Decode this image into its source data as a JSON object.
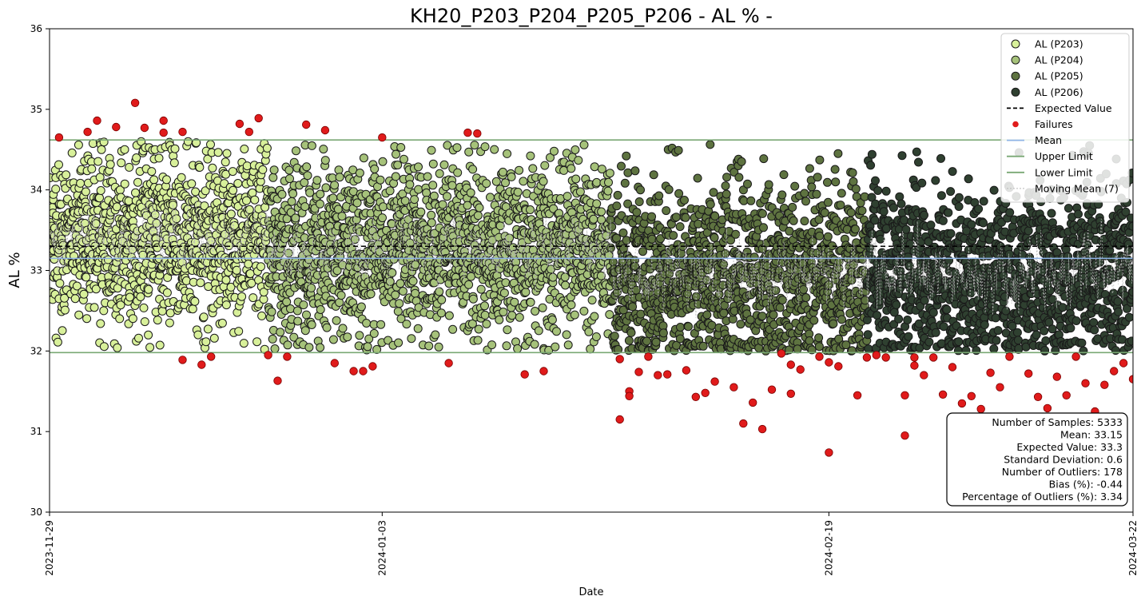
{
  "chart_data": {
    "type": "scatter",
    "title": "KH20_P203_P204_P205_P206 - AL % -",
    "xlabel": "Date",
    "ylabel": "AL %",
    "xlim": [
      "2023-11-29",
      "2024-03-22"
    ],
    "ylim": [
      30,
      36
    ],
    "x_ticks": [
      "2023-11-29",
      "2024-01-03",
      "2024-02-19",
      "2024-03-22"
    ],
    "y_ticks": [
      30,
      31,
      32,
      33,
      34,
      35,
      36
    ],
    "grid": false,
    "legend_position": "top-right",
    "expected_value": 33.3,
    "mean": 33.15,
    "upper_limit": 34.62,
    "lower_limit": 31.98,
    "series": [
      {
        "name": "AL (P203)",
        "color": "#d8f09a",
        "date_range": [
          "2023-11-29",
          "2023-12-22"
        ],
        "center": 33.4,
        "spread": 0.55
      },
      {
        "name": "AL (P204)",
        "color": "#a6c27a",
        "date_range": [
          "2023-12-22",
          "2024-01-27"
        ],
        "center": 33.25,
        "spread": 0.55
      },
      {
        "name": "AL (P205)",
        "color": "#5e7340",
        "date_range": [
          "2024-01-27",
          "2024-02-23"
        ],
        "center": 32.9,
        "spread": 0.6
      },
      {
        "name": "AL (P206)",
        "color": "#2f4030",
        "date_range": [
          "2024-02-23",
          "2024-03-22"
        ],
        "center": 32.95,
        "spread": 0.55
      }
    ],
    "failures": {
      "name": "Failures",
      "color": "#e01b1b",
      "points": [
        [
          "2023-11-30",
          34.65
        ],
        [
          "2023-12-03",
          34.72
        ],
        [
          "2023-12-04",
          34.86
        ],
        [
          "2023-12-06",
          34.78
        ],
        [
          "2023-12-08",
          35.08
        ],
        [
          "2023-12-09",
          34.77
        ],
        [
          "2023-12-11",
          34.71
        ],
        [
          "2023-12-11",
          34.86
        ],
        [
          "2023-12-13",
          34.72
        ],
        [
          "2023-12-13",
          31.89
        ],
        [
          "2023-12-15",
          31.83
        ],
        [
          "2023-12-16",
          31.93
        ],
        [
          "2023-12-19",
          34.82
        ],
        [
          "2023-12-20",
          34.72
        ],
        [
          "2023-12-21",
          34.89
        ],
        [
          "2023-12-22",
          31.95
        ],
        [
          "2023-12-23",
          31.63
        ],
        [
          "2023-12-24",
          31.93
        ],
        [
          "2023-12-26",
          34.81
        ],
        [
          "2023-12-28",
          34.74
        ],
        [
          "2023-12-29",
          31.85
        ],
        [
          "2023-12-31",
          31.75
        ],
        [
          "2024-01-01",
          31.75
        ],
        [
          "2024-01-02",
          31.81
        ],
        [
          "2024-01-03",
          34.65
        ],
        [
          "2024-01-10",
          31.85
        ],
        [
          "2024-01-12",
          34.71
        ],
        [
          "2024-01-13",
          34.7
        ],
        [
          "2024-01-18",
          31.71
        ],
        [
          "2024-01-20",
          31.75
        ],
        [
          "2024-01-28",
          31.15
        ],
        [
          "2024-01-28",
          31.9
        ],
        [
          "2024-01-29",
          31.5
        ],
        [
          "2024-01-29",
          31.44
        ],
        [
          "2024-01-30",
          31.74
        ],
        [
          "2024-01-31",
          31.93
        ],
        [
          "2024-02-01",
          31.7
        ],
        [
          "2024-02-02",
          31.71
        ],
        [
          "2024-02-04",
          31.76
        ],
        [
          "2024-02-05",
          31.43
        ],
        [
          "2024-02-06",
          31.48
        ],
        [
          "2024-02-07",
          31.62
        ],
        [
          "2024-02-09",
          31.55
        ],
        [
          "2024-02-10",
          31.1
        ],
        [
          "2024-02-11",
          31.36
        ],
        [
          "2024-02-12",
          31.03
        ],
        [
          "2024-02-13",
          31.52
        ],
        [
          "2024-02-14",
          31.97
        ],
        [
          "2024-02-15",
          31.47
        ],
        [
          "2024-02-15",
          31.83
        ],
        [
          "2024-02-16",
          31.77
        ],
        [
          "2024-02-18",
          31.93
        ],
        [
          "2024-02-19",
          30.74
        ],
        [
          "2024-02-19",
          31.86
        ],
        [
          "2024-02-20",
          31.81
        ],
        [
          "2024-02-22",
          31.45
        ],
        [
          "2024-02-23",
          31.92
        ],
        [
          "2024-02-24",
          31.95
        ],
        [
          "2024-02-25",
          31.92
        ],
        [
          "2024-02-27",
          30.95
        ],
        [
          "2024-02-27",
          31.45
        ],
        [
          "2024-02-28",
          31.82
        ],
        [
          "2024-02-28",
          31.92
        ],
        [
          "2024-02-29",
          31.7
        ],
        [
          "2024-03-01",
          31.92
        ],
        [
          "2024-03-02",
          31.46
        ],
        [
          "2024-03-03",
          31.8
        ],
        [
          "2024-03-04",
          31.35
        ],
        [
          "2024-03-05",
          31.44
        ],
        [
          "2024-03-06",
          31.28
        ],
        [
          "2024-03-07",
          31.73
        ],
        [
          "2024-03-08",
          31.55
        ],
        [
          "2024-03-09",
          31.93
        ],
        [
          "2024-03-10",
          31.08
        ],
        [
          "2024-03-11",
          31.72
        ],
        [
          "2024-03-12",
          31.43
        ],
        [
          "2024-03-13",
          31.29
        ],
        [
          "2024-03-14",
          31.68
        ],
        [
          "2024-03-15",
          31.45
        ],
        [
          "2024-03-16",
          31.93
        ],
        [
          "2024-03-17",
          31.6
        ],
        [
          "2024-03-18",
          31.25
        ],
        [
          "2024-03-19",
          31.58
        ],
        [
          "2024-03-20",
          31.75
        ],
        [
          "2024-03-21",
          31.85
        ],
        [
          "2024-03-22",
          31.65
        ]
      ]
    },
    "moving_mean": {
      "name": "Moving Mean (7)",
      "color": "#b8b8b8",
      "style": "dashed"
    },
    "reference_lines": [
      {
        "name": "Expected Value",
        "value": 33.3,
        "color": "#000000",
        "style": "dashed"
      },
      {
        "name": "Mean",
        "value": 33.15,
        "color": "#8fb4e6",
        "style": "solid"
      },
      {
        "name": "Upper Limit",
        "value": 34.62,
        "color": "#7aa874",
        "style": "solid"
      },
      {
        "name": "Lower Limit",
        "value": 31.98,
        "color": "#7aa874",
        "style": "solid"
      }
    ],
    "legend": [
      {
        "label": "AL (P203)",
        "kind": "dot",
        "color": "#d8f09a"
      },
      {
        "label": "AL (P204)",
        "kind": "dot",
        "color": "#a6c27a"
      },
      {
        "label": "AL (P205)",
        "kind": "dot",
        "color": "#5e7340"
      },
      {
        "label": "AL (P206)",
        "kind": "dot",
        "color": "#2f4030"
      },
      {
        "label": "Expected Value",
        "kind": "dash",
        "color": "#000000"
      },
      {
        "label": "Failures",
        "kind": "failure",
        "color": "#e01b1b"
      },
      {
        "label": "Mean",
        "kind": "line",
        "color": "#8fb4e6"
      },
      {
        "label": "Upper Limit",
        "kind": "line",
        "color": "#7aa874"
      },
      {
        "label": "Lower Limit",
        "kind": "line",
        "color": "#7aa874"
      },
      {
        "label": "Moving Mean (7)",
        "kind": "dash",
        "color": "#b8b8b8"
      }
    ],
    "stats": [
      "Number of Samples: 5333",
      "Mean: 33.15",
      "Expected Value: 33.3",
      "Standard Deviation: 0.6",
      "Number of Outliers: 178",
      "Bias (%): -0.44",
      "Percentage of Outliers (%): 3.34"
    ]
  }
}
